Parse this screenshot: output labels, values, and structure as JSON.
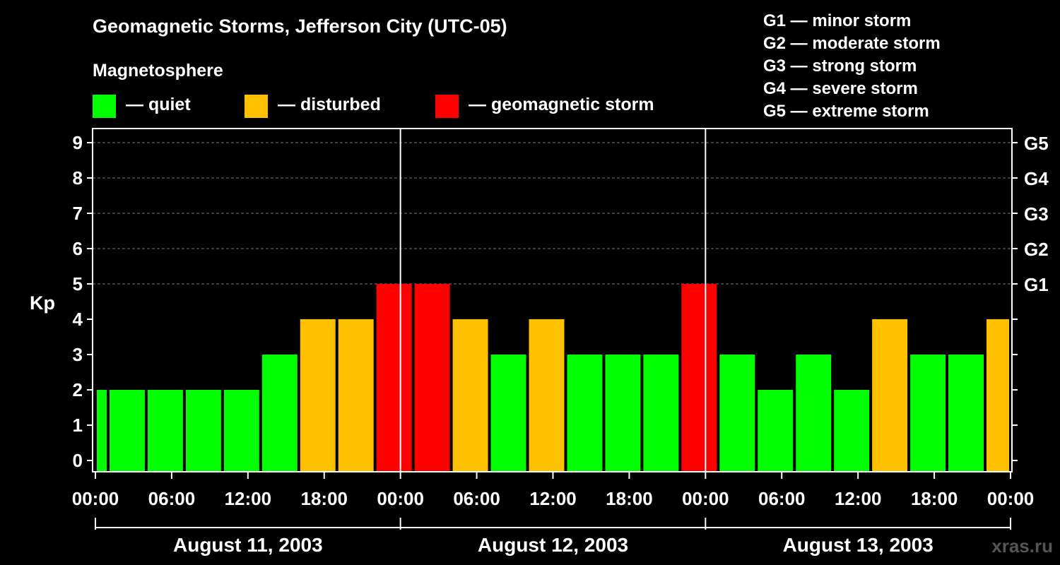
{
  "title": "Geomagnetic Storms, Jefferson City (UTC-05)",
  "subtitle": "Magnetosphere",
  "legend": [
    {
      "label": "— quiet",
      "color": "#00ff00"
    },
    {
      "label": "— disturbed",
      "color": "#ffc000"
    },
    {
      "label": "— geomagnetic storm",
      "color": "#ff0000"
    }
  ],
  "storm_scale": [
    "G1 — minor storm",
    "G2 — moderate storm",
    "G3 — strong storm",
    "G4 — severe storm",
    "G5 — extreme storm"
  ],
  "watermark": "xras.ru",
  "chart_data": {
    "type": "bar",
    "ylabel": "Kp",
    "ylim": [
      0,
      9.5
    ],
    "yticks": [
      0,
      1,
      2,
      3,
      4,
      5,
      6,
      7,
      8,
      9
    ],
    "right_labels": [
      {
        "value": 5,
        "label": "G1"
      },
      {
        "value": 6,
        "label": "G2"
      },
      {
        "value": 7,
        "label": "G3"
      },
      {
        "value": 8,
        "label": "G4"
      },
      {
        "value": 9,
        "label": "G5"
      }
    ],
    "x_range_hours": [
      0,
      72
    ],
    "x_tick_hours": [
      0,
      6,
      12,
      18,
      24,
      30,
      36,
      42,
      48,
      54,
      60,
      66,
      72
    ],
    "x_tick_labels": [
      "00:00",
      "06:00",
      "12:00",
      "18:00",
      "00:00",
      "06:00",
      "12:00",
      "18:00",
      "00:00",
      "06:00",
      "12:00",
      "18:00",
      "00:00"
    ],
    "day_divider_hours": [
      24,
      48
    ],
    "dates": [
      {
        "label": "August 11, 2003",
        "start_hour": 0,
        "end_hour": 24
      },
      {
        "label": "August 12, 2003",
        "start_hour": 24,
        "end_hour": 48
      },
      {
        "label": "August 13, 2003",
        "start_hour": 48,
        "end_hour": 72
      }
    ],
    "color_levels": {
      "quiet": "#00ff00",
      "disturbed": "#ffc000",
      "storm": "#ff0000"
    },
    "bars": [
      {
        "start_hour": 0,
        "end_hour": 1,
        "kp": 2
      },
      {
        "start_hour": 1,
        "end_hour": 4,
        "kp": 2
      },
      {
        "start_hour": 4,
        "end_hour": 7,
        "kp": 2
      },
      {
        "start_hour": 7,
        "end_hour": 10,
        "kp": 2
      },
      {
        "start_hour": 10,
        "end_hour": 13,
        "kp": 2
      },
      {
        "start_hour": 13,
        "end_hour": 16,
        "kp": 3
      },
      {
        "start_hour": 16,
        "end_hour": 19,
        "kp": 4
      },
      {
        "start_hour": 19,
        "end_hour": 22,
        "kp": 4
      },
      {
        "start_hour": 22,
        "end_hour": 25,
        "kp": 5
      },
      {
        "start_hour": 25,
        "end_hour": 28,
        "kp": 5
      },
      {
        "start_hour": 28,
        "end_hour": 31,
        "kp": 4
      },
      {
        "start_hour": 31,
        "end_hour": 34,
        "kp": 3
      },
      {
        "start_hour": 34,
        "end_hour": 37,
        "kp": 4
      },
      {
        "start_hour": 37,
        "end_hour": 40,
        "kp": 3
      },
      {
        "start_hour": 40,
        "end_hour": 43,
        "kp": 3
      },
      {
        "start_hour": 43,
        "end_hour": 46,
        "kp": 3
      },
      {
        "start_hour": 46,
        "end_hour": 49,
        "kp": 5
      },
      {
        "start_hour": 49,
        "end_hour": 52,
        "kp": 3
      },
      {
        "start_hour": 52,
        "end_hour": 55,
        "kp": 2
      },
      {
        "start_hour": 55,
        "end_hour": 58,
        "kp": 3
      },
      {
        "start_hour": 58,
        "end_hour": 61,
        "kp": 2
      },
      {
        "start_hour": 61,
        "end_hour": 64,
        "kp": 4
      },
      {
        "start_hour": 64,
        "end_hour": 67,
        "kp": 3
      },
      {
        "start_hour": 67,
        "end_hour": 70,
        "kp": 3
      },
      {
        "start_hour": 70,
        "end_hour": 72,
        "kp": 4
      }
    ]
  }
}
